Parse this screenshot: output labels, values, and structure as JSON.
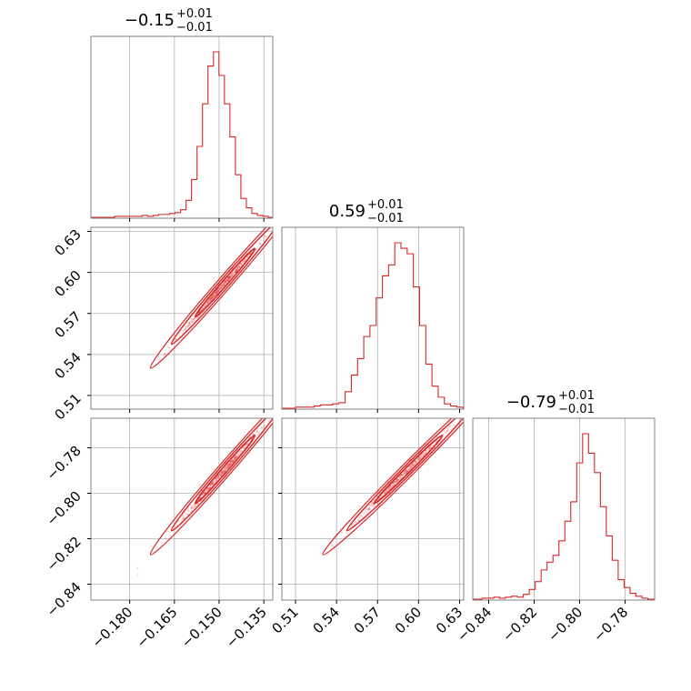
{
  "chart_data": {
    "type": "corner",
    "color": "#d62728",
    "grid": true,
    "parameters": [
      {
        "title": {
          "median": "−0.15",
          "plus": "+0.01",
          "minus": "−0.01"
        },
        "range": [
          -0.193,
          -0.132
        ],
        "ticks": [
          -0.18,
          -0.165,
          -0.15,
          -0.135
        ],
        "tick_labels": [
          "−0.180",
          "−0.165",
          "−0.150",
          "−0.135"
        ],
        "hist_start": -0.185,
        "hist_counts": [
          1,
          1,
          1,
          1,
          1,
          2,
          1,
          2,
          3,
          3,
          4,
          5,
          8,
          18,
          40,
          75,
          120,
          160,
          175,
          150,
          120,
          85,
          45,
          20,
          10,
          4,
          2,
          1
        ]
      },
      {
        "title": {
          "median": "0.59",
          "plus": "+0.01",
          "minus": "−0.01"
        },
        "range": [
          0.5,
          0.633
        ],
        "ticks": [
          0.51,
          0.54,
          0.57,
          0.6,
          0.63
        ],
        "tick_labels": [
          "0.51",
          "0.54",
          "0.57",
          "0.60",
          "0.63"
        ],
        "hist_start": 0.51,
        "hist_counts": [
          1,
          1,
          1,
          2,
          3,
          3,
          4,
          5,
          15,
          30,
          45,
          65,
          75,
          100,
          120,
          130,
          150,
          145,
          140,
          110,
          75,
          40,
          20,
          10,
          4,
          2,
          1
        ]
      },
      {
        "title": {
          "median": "−0.79",
          "plus": "+0.01",
          "minus": "−0.01"
        },
        "range": [
          -0.847,
          -0.767
        ],
        "ticks": [
          -0.84,
          -0.82,
          -0.8,
          -0.78
        ],
        "tick_labels": [
          "−0.84",
          "−0.82",
          "−0.80",
          "−0.78"
        ],
        "hist_start": -0.843,
        "hist_counts": [
          1,
          1,
          2,
          1,
          2,
          3,
          2,
          5,
          10,
          18,
          30,
          38,
          45,
          60,
          80,
          100,
          140,
          170,
          150,
          130,
          95,
          65,
          40,
          20,
          12,
          6,
          3,
          1
        ]
      }
    ]
  }
}
